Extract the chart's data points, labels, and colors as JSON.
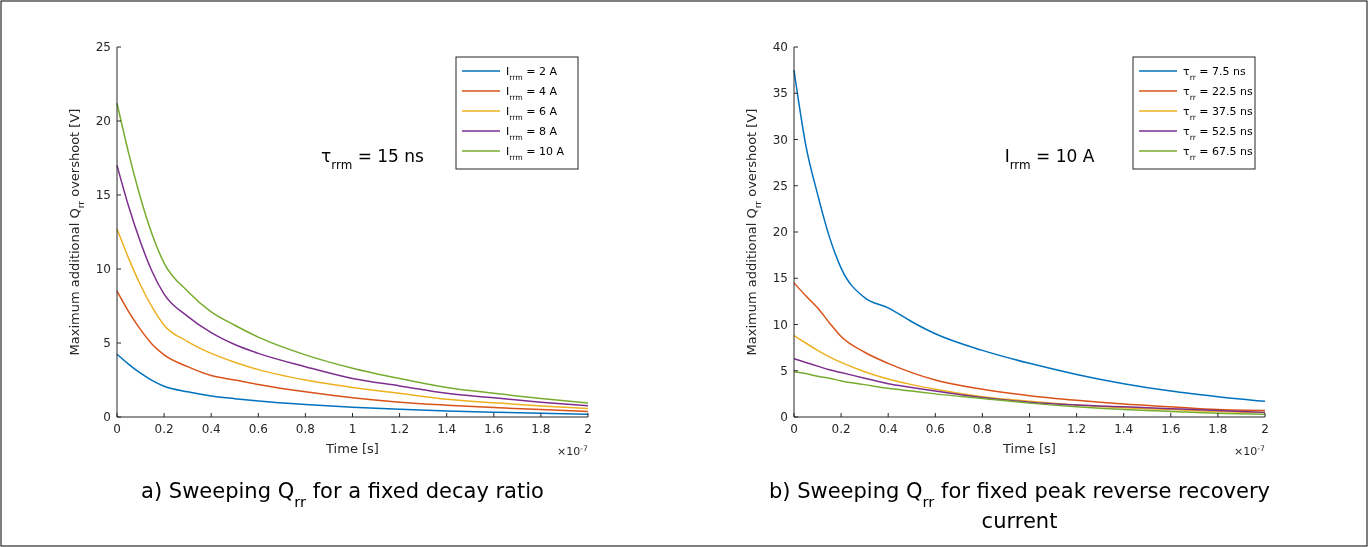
{
  "chart_data": [
    {
      "type": "line",
      "title": "a) Sweeping Q$_{rr}$ for a fixed decay ratio",
      "xlabel": "Time [s]",
      "ylabel": "Maximum additional  Q$_{rr}$ overshoot [V]",
      "annotations": [
        "τ$_{rrm}$ = 15 ns",
        "×10$^{-7}$"
      ],
      "x": [
        0,
        0.05,
        0.1,
        0.15,
        0.2,
        0.3,
        0.4,
        0.5,
        0.6,
        0.8,
        1.0,
        1.2,
        1.4,
        1.6,
        1.8,
        2.0
      ],
      "xlim": [
        0,
        2
      ],
      "xticks": [
        0,
        0.2,
        0.4,
        0.6,
        0.8,
        1,
        1.2,
        1.4,
        1.6,
        1.8,
        2
      ],
      "ylim": [
        0,
        25
      ],
      "yticks": [
        0,
        5,
        10,
        15,
        20,
        25
      ],
      "legend": "top right",
      "grid": false,
      "line_style": "solid",
      "series": [
        {
          "name": "I$_{rrm}$ = 2 A",
          "color": "#0072bd",
          "values": [
            4.24,
            3.56,
            2.96,
            2.46,
            2.08,
            1.7,
            1.42,
            1.24,
            1.08,
            0.84,
            0.66,
            0.52,
            0.4,
            0.32,
            0.25,
            0.19
          ]
        },
        {
          "name": "I$_{rrm}$ = 4 A",
          "color": "#d95319",
          "values": [
            8.5,
            7.1,
            5.9,
            4.9,
            4.2,
            3.4,
            2.8,
            2.5,
            2.2,
            1.7,
            1.3,
            1.0,
            0.8,
            0.64,
            0.5,
            0.38
          ]
        },
        {
          "name": "I$_{rrm}$ = 6 A",
          "color": "#edb120",
          "values": [
            12.7,
            10.7,
            8.9,
            7.4,
            6.2,
            5.1,
            4.3,
            3.7,
            3.2,
            2.5,
            2.0,
            1.6,
            1.2,
            0.96,
            0.75,
            0.57
          ]
        },
        {
          "name": "I$_{rrm}$ = 8 A",
          "color": "#7e2f8e",
          "values": [
            17.0,
            14.2,
            11.8,
            9.8,
            8.3,
            6.8,
            5.7,
            4.9,
            4.3,
            3.4,
            2.6,
            2.1,
            1.6,
            1.3,
            1.0,
            0.76
          ]
        },
        {
          "name": "I$_{rrm}$ = 10 A",
          "color": "#77ac30",
          "values": [
            21.2,
            17.8,
            14.8,
            12.3,
            10.4,
            8.5,
            7.1,
            6.2,
            5.4,
            4.2,
            3.3,
            2.6,
            2.0,
            1.6,
            1.25,
            0.95
          ]
        }
      ]
    },
    {
      "type": "line",
      "title": "b) Sweeping Q$_{rr}$ for fixed peak reverse recovery current",
      "xlabel": "Time [s]",
      "ylabel": "Maximum additional  Q$_{rr}$ overshoot [V]",
      "annotations": [
        "I$_{rrm}$ = 10 A",
        "×10$^{-7}$"
      ],
      "x": [
        0,
        0.05,
        0.1,
        0.15,
        0.2,
        0.3,
        0.4,
        0.5,
        0.6,
        0.8,
        1.0,
        1.2,
        1.4,
        1.6,
        1.8,
        2.0
      ],
      "xlim": [
        0,
        2
      ],
      "xticks": [
        0,
        0.2,
        0.4,
        0.6,
        0.8,
        1,
        1.2,
        1.4,
        1.6,
        1.8,
        2
      ],
      "ylim": [
        0,
        40
      ],
      "yticks": [
        0,
        5,
        10,
        15,
        20,
        25,
        30,
        35,
        40
      ],
      "legend": "top right",
      "grid": false,
      "line_style": "solid",
      "series": [
        {
          "name": "τ$_{rr}$ = 7.5 ns",
          "color": "#0072bd",
          "values": [
            37.5,
            29.4,
            24.1,
            19.5,
            16.1,
            12.9,
            11.8,
            10.3,
            9.0,
            7.2,
            5.8,
            4.6,
            3.6,
            2.8,
            2.2,
            1.7
          ]
        },
        {
          "name": "τ$_{rr}$ = 22.5 ns",
          "color": "#d95319",
          "values": [
            14.5,
            13.1,
            11.8,
            10.2,
            8.7,
            7.0,
            5.8,
            4.8,
            4.0,
            3.0,
            2.3,
            1.8,
            1.4,
            1.1,
            0.8,
            0.7
          ]
        },
        {
          "name": "τ$_{rr}$ = 37.5 ns",
          "color": "#edb120",
          "values": [
            8.8,
            8.0,
            7.2,
            6.5,
            5.9,
            4.9,
            4.1,
            3.5,
            3.0,
            2.2,
            1.7,
            1.3,
            1.0,
            0.8,
            0.6,
            0.5
          ]
        },
        {
          "name": "τ$_{rr}$ = 52.5 ns",
          "color": "#7e2f8e",
          "values": [
            6.3,
            5.9,
            5.5,
            5.1,
            4.8,
            4.2,
            3.6,
            3.2,
            2.8,
            2.1,
            1.6,
            1.3,
            1.1,
            0.9,
            0.7,
            0.5
          ]
        },
        {
          "name": "τ$_{rr}$ = 67.5 ns",
          "color": "#77ac30",
          "values": [
            4.9,
            4.7,
            4.4,
            4.2,
            3.9,
            3.5,
            3.1,
            2.8,
            2.5,
            2.0,
            1.5,
            1.1,
            0.8,
            0.6,
            0.4,
            0.3
          ]
        }
      ]
    }
  ]
}
